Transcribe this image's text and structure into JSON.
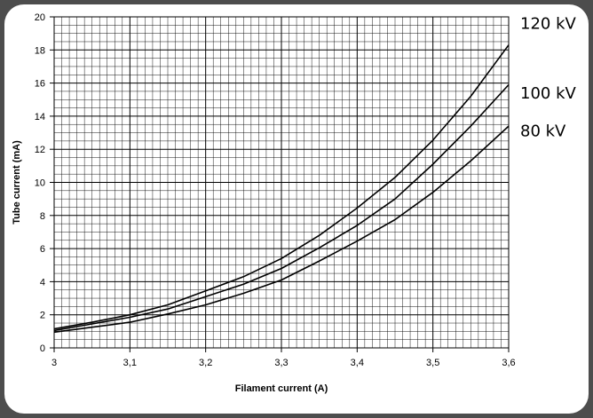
{
  "chart_data": {
    "type": "line",
    "xlabel": "Filament current (A)",
    "ylabel": "Tube current (mA)",
    "xlim": [
      3.0,
      3.6
    ],
    "ylim": [
      0,
      20
    ],
    "x_ticks": [
      "3",
      "3,1",
      "3,2",
      "3,3",
      "3,4",
      "3,5",
      "3,6"
    ],
    "y_ticks": [
      "0",
      "2",
      "4",
      "6",
      "8",
      "10",
      "12",
      "14",
      "16",
      "18",
      "20"
    ],
    "grid": true,
    "legend": "series labels at right end of lines",
    "x": [
      3.0,
      3.05,
      3.1,
      3.15,
      3.2,
      3.25,
      3.3,
      3.35,
      3.4,
      3.45,
      3.5,
      3.55,
      3.6
    ],
    "series": [
      {
        "name": "120 kV",
        "values": [
          1.15,
          1.55,
          2.0,
          2.6,
          3.45,
          4.3,
          5.4,
          6.8,
          8.45,
          10.3,
          12.55,
          15.2,
          18.3
        ],
        "label_value": 19.6
      },
      {
        "name": "100 kV",
        "values": [
          1.05,
          1.45,
          1.85,
          2.35,
          3.1,
          3.85,
          4.8,
          6.05,
          7.4,
          9.0,
          11.1,
          13.4,
          15.9
        ],
        "label_value": 15.4
      },
      {
        "name": "80 kV",
        "values": [
          0.95,
          1.25,
          1.55,
          2.05,
          2.6,
          3.3,
          4.1,
          5.25,
          6.45,
          7.75,
          9.4,
          11.3,
          13.4
        ],
        "label_value": 13.1
      }
    ]
  }
}
